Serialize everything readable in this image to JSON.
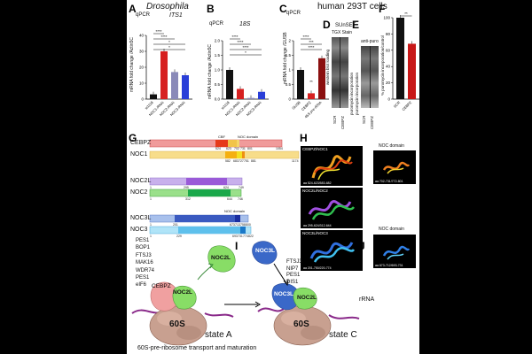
{
  "panel_letters": {
    "A": "A",
    "B": "B",
    "C": "C",
    "D": "D",
    "E": "E",
    "F": "F",
    "G": "G",
    "H": "H",
    "I": "I",
    "J": "J"
  },
  "headers": {
    "drosophila": "Drosophila",
    "human": "human 293T cells"
  },
  "panelA": {
    "method": "qPCR",
    "gene": "ITS1",
    "ylabel": "mRNA fold change /Actin5C",
    "ticks": [
      "0",
      "10",
      "20",
      "30",
      "40"
    ],
    "sig": [
      "****",
      "****",
      "*",
      "*"
    ]
  },
  "panelB": {
    "method": "qPCR",
    "gene": "18S",
    "ylabel": "mRNA fold change /Actin5C",
    "ticks": [
      "0.0",
      "0.5",
      "1.0",
      "1.5",
      "2.0"
    ],
    "sig": [
      "****",
      "****",
      "****",
      "*"
    ]
  },
  "panelC": {
    "method": "qPCR",
    "ylabel": "mRNA fold change /GUSB",
    "ticks": [
      "0",
      "0.5",
      "1",
      "1.5",
      "2"
    ],
    "sig": [
      "****",
      "***",
      "****"
    ],
    "cats": [
      "GUSB",
      "CEBPZ",
      "45S pre-rRNA"
    ],
    "point_label": "**"
  },
  "panelD": {
    "title": "SUnSET",
    "subtitle": "TGX Stain",
    "left_label": "western blot loading",
    "right_label": "puromycin incorporation",
    "lanes": [
      "SCR",
      "CEBPZ"
    ]
  },
  "panelE": {
    "title": "anti-puro",
    "label": "puromycin incorporation",
    "lanes": [
      "SCR",
      "CEBPZ"
    ]
  },
  "panelF": {
    "sig": "**",
    "ylabel": "% puromycin incorporation/control",
    "ticks": [
      "0",
      "20",
      "40",
      "60",
      "80",
      "100"
    ],
    "cats": [
      "SCR",
      "CEBPZ"
    ]
  },
  "chart_data": [
    {
      "type": "bar",
      "panel": "A",
      "title": "ITS1",
      "ylabel": "mRNA fold change /Actin5C",
      "ylim": [
        0,
        40
      ],
      "categories": [
        "w1118",
        "NOC1-RNAi",
        "NOC2-RNAi",
        "NOC3-RNAi"
      ],
      "values": [
        3,
        30,
        17,
        15
      ],
      "colors": [
        "#111111",
        "#d62020",
        "#8a8ab8",
        "#2a3fd8"
      ]
    },
    {
      "type": "bar",
      "panel": "B",
      "title": "18S",
      "ylabel": "mRNA fold change /Actin5C",
      "ylim": [
        0,
        2
      ],
      "categories": [
        "w1118",
        "NOC1-RNAi",
        "NOC2-RNAi",
        "NOC3-RNAi"
      ],
      "values": [
        1.0,
        0.35,
        0.04,
        0.25
      ],
      "colors": [
        "#111111",
        "#d62020",
        "#8a8ab8",
        "#2a3fd8"
      ]
    },
    {
      "type": "bar",
      "panel": "C",
      "ylabel": "mRNA fold change /GUSB",
      "ylim": [
        0,
        2
      ],
      "categories": [
        "GUSB",
        "CEBPZ",
        "45S pre-rRNA"
      ],
      "values": [
        1.0,
        0.2,
        1.4
      ],
      "colors": [
        "#111111",
        "#d62020",
        "#8b1010"
      ]
    },
    {
      "type": "bar",
      "panel": "F",
      "ylabel": "% puromycin incorporation/control",
      "ylim": [
        0,
        100
      ],
      "categories": [
        "SCR",
        "CEBPZ"
      ],
      "values": [
        100,
        68
      ],
      "colors": [
        "#111111",
        "#c81818"
      ]
    }
  ],
  "panelG": {
    "proteins": [
      {
        "name": "CEBPZ",
        "len": "1054",
        "nums": [
          "524",
          "623",
          "702",
          "731",
          "801"
        ],
        "label_CBF": "CBF",
        "label_NOC": "NOC domain"
      },
      {
        "name": "NOC1",
        "len": "1174",
        "nums": [
          "582",
          "683",
          "727",
          "751",
          "881"
        ]
      },
      {
        "name": "NOC2L",
        "len": "749",
        "nums": [
          "1",
          "295",
          "624",
          "749"
        ]
      },
      {
        "name": "NOC2",
        "len": "746",
        "nums": [
          "1",
          "312",
          "644",
          "746"
        ]
      },
      {
        "name": "NOC3L",
        "len": "800",
        "nums": [
          "1",
          "201",
          "673",
          "713",
          "758",
          "800"
        ],
        "label_NOC": "NOC domain"
      },
      {
        "name": "NOC3",
        "len": "822",
        "nums": [
          "1",
          "229",
          "693",
          "731",
          "774",
          "822"
        ]
      }
    ]
  },
  "panelH": {
    "rows": [
      {
        "title": "CEBPZ/NOC1",
        "sub": "aa 524-623/583-682",
        "right_title": "NOC domain",
        "right_sub": "aa 702-731/772-801"
      },
      {
        "title": "NOC2L/NOC2",
        "sub": "aa 295-624/312-644",
        "right_title": "",
        "right_sub": ""
      },
      {
        "title": "NOC3L/NOC3",
        "sub": "aa 201-750/220-774",
        "right_title": "NOC domain",
        "right_sub": "aa 673-712/693-731"
      }
    ]
  },
  "panelI": {
    "list": [
      "PES1",
      "BOP1",
      "FTSJ3",
      "MAK16",
      "WDR74",
      "PES1",
      "eIF6"
    ],
    "cebpz": "CEBPZ",
    "noc2l": "NOC2L",
    "noc2l_free": "NOC2L",
    "ribosome": "60S",
    "state": "state A"
  },
  "panelJ": {
    "list": [
      "FTSJ3",
      "NIP7",
      "PES1",
      "DIS1"
    ],
    "noc3l_free": "NOC3L",
    "noc3l": "NOC3L",
    "noc2l": "NOC2L",
    "ribosome": "60S",
    "state": "state C",
    "rrna": "rRNA"
  },
  "caption": "60S-pre-ribosome transport and maturation"
}
